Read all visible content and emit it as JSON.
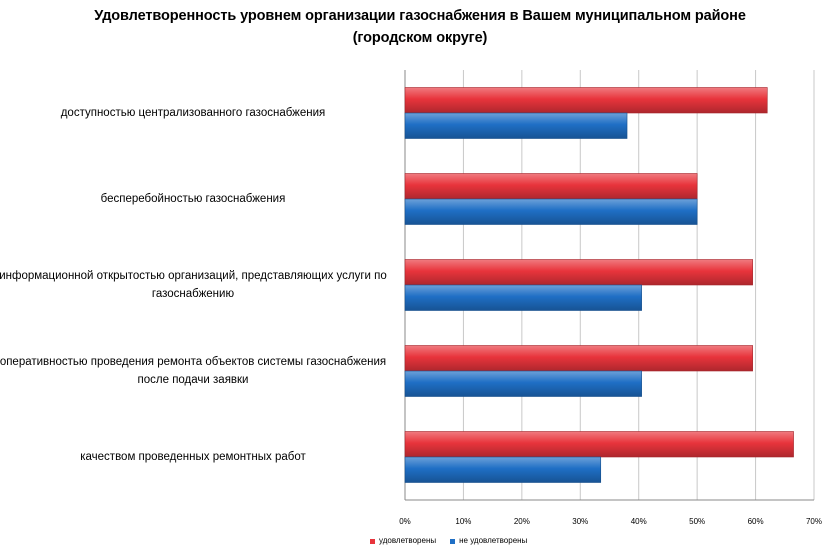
{
  "chart_data": {
    "type": "bar",
    "orientation": "horizontal",
    "title": "Удовлетворенность уровнем организации газоснабжения в Вашем муниципальном районе (городском округе)",
    "categories": [
      "доступностью централизованного газоснабжения",
      "бесперебойностью газоснабжения",
      "информационной открытостью организаций, представляющих услуги по газоснабжению",
      "оперативностью проведения ремонта объектов системы газоснабжения после подачи заявки",
      "качеством проведенных ремонтных работ"
    ],
    "series": [
      {
        "name": "удовлетворены",
        "color": "#e8343c",
        "values": [
          62,
          50,
          59.5,
          59.5,
          66.5
        ]
      },
      {
        "name": "не удовлетворены",
        "color": "#1f6fc5",
        "values": [
          38,
          50,
          40.5,
          40.5,
          33.5
        ]
      }
    ],
    "xlim": [
      0,
      70
    ],
    "xticks": [
      "0%",
      "10%",
      "20%",
      "30%",
      "40%",
      "50%",
      "60%",
      "70%"
    ],
    "xlabel": "",
    "ylabel": "",
    "grid": true,
    "legend_position": "bottom"
  }
}
